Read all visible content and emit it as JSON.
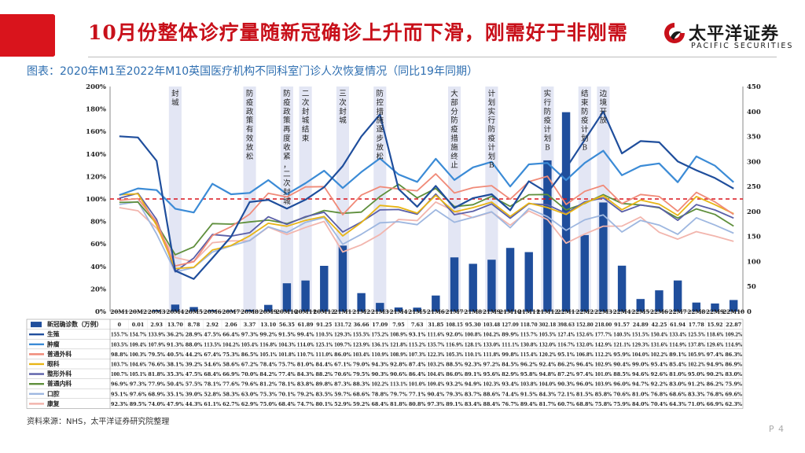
{
  "header": {
    "title": "10月份整体诊疗量随新冠确诊上升而下滑，刚需好于非刚需",
    "logo_cn": "太平洋证券",
    "logo_en": "PACIFIC SECURITIES"
  },
  "subtitle": "图表：2020年M1至2022年M10英国医疗机构不同科室门诊人次恢复情况（同比19年同期）",
  "source": "资料来源：NHS，太平洋证券研究院整理",
  "page_number": "P 4",
  "colors": {
    "brand_red": "#d9141c",
    "subtitle_blue": "#2f6fb1"
  },
  "chart_data": {
    "type": "line",
    "categories": [
      "20M1",
      "20M2",
      "20M3",
      "20M4",
      "20M5",
      "20M6",
      "20M7",
      "20M8",
      "20M9",
      "20M10",
      "20M11",
      "20M12",
      "21M1",
      "21M2",
      "21M3",
      "21M4",
      "21M5",
      "21M6",
      "21M7",
      "21M8",
      "21M9",
      "21M10",
      "21M11",
      "21M12",
      "22M1",
      "22M2",
      "22M3",
      "22M4",
      "22M5",
      "22M6",
      "22M7",
      "22M8",
      "22M9",
      "22M10"
    ],
    "y_left": {
      "min": 0,
      "max": 200,
      "step": 20,
      "suffix": "%"
    },
    "y_right": {
      "min": 0,
      "max": 450,
      "step": 50
    },
    "reference_line": 100,
    "bars": {
      "name": "新冠确诊数（万例）",
      "labels": [
        "0",
        "0.01",
        "2.93",
        "13.70",
        "8.78",
        "2.92",
        "2.06",
        "3.37",
        "13.10",
        "56.35",
        "61.89",
        "91.25",
        "131.72",
        "36.66",
        "17.09",
        "7.95",
        "7.63",
        "31.85",
        "108.15",
        "95.30",
        "103.48",
        "127.09",
        "118.70",
        "302.18",
        "398.63",
        "152.80",
        "218.00",
        "91.57",
        "24.89",
        "42.25",
        "61.94",
        "17.78",
        "15.92",
        "22.87"
      ],
      "color": "#1f4e9c"
    },
    "series": [
      {
        "name": "生殖",
        "color": "#1f4e9c",
        "labels": [
          "155.7%",
          "154.7%",
          "133.9%",
          "36.2%",
          "28.9%",
          "47.5%",
          "66.4%",
          "97.3%",
          "99.2%",
          "91.5%",
          "99.4%",
          "110.5%",
          "129.3%",
          "155.5%",
          "175.2%",
          "108.9%",
          "93.1%",
          "111.6%",
          "92.0%",
          "100.8%",
          "104.2%",
          "89.9%",
          "115.7%",
          "105.5%",
          "127.4%",
          "152.6%",
          "177.7%",
          "140.5%",
          "151.5%",
          "150.4%",
          "133.4%",
          "125.5%",
          "118.6%",
          "109.2%"
        ]
      },
      {
        "name": "肿瘤",
        "color": "#3b8bd6",
        "labels": [
          "103.5%",
          "109.4%",
          "107.9%",
          "91.3%",
          "88.0%",
          "113.5%",
          "104.2%",
          "105.4%",
          "116.8%",
          "104.3%",
          "114.0%",
          "125.1%",
          "109.7%",
          "123.9%",
          "136.1%",
          "121.8%",
          "115.2%",
          "135.7%",
          "116.9%",
          "128.1%",
          "133.0%",
          "111.1%",
          "130.8%",
          "132.0%",
          "116.7%",
          "132.0%",
          "142.9%",
          "121.1%",
          "129.3%",
          "131.6%",
          "114.9%",
          "137.8%",
          "129.6%",
          "114.9%"
        ]
      },
      {
        "name": "普通外科",
        "color": "#f08a78",
        "labels": [
          "98.8%",
          "100.3%",
          "79.5%",
          "40.5%",
          "44.2%",
          "67.4%",
          "75.3%",
          "86.5%",
          "105.1%",
          "101.8%",
          "110.7%",
          "111.0%",
          "86.0%",
          "103.4%",
          "110.9%",
          "108.9%",
          "107.3%",
          "122.3%",
          "105.3%",
          "110.1%",
          "111.8%",
          "99.8%",
          "115.4%",
          "120.2%",
          "95.1%",
          "106.8%",
          "112.2%",
          "95.9%",
          "104.0%",
          "102.2%",
          "89.1%",
          "105.9%",
          "97.4%",
          "86.3%"
        ]
      },
      {
        "name": "眼科",
        "color": "#e8b516",
        "labels": [
          "103.7%",
          "104.6%",
          "76.6%",
          "38.1%",
          "39.2%",
          "54.6%",
          "58.6%",
          "67.2%",
          "78.4%",
          "75.7%",
          "81.0%",
          "84.4%",
          "67.1%",
          "79.0%",
          "94.3%",
          "92.8%",
          "87.4%",
          "103.2%",
          "88.5%",
          "92.3%",
          "97.2%",
          "84.5%",
          "96.2%",
          "92.4%",
          "86.2%",
          "96.4%",
          "102.9%",
          "90.4%",
          "99.0%",
          "95.4%",
          "85.4%",
          "102.2%",
          "94.9%",
          "86.9%"
        ]
      },
      {
        "name": "整形外科",
        "color": "#5a5fa8",
        "labels": [
          "100.7%",
          "105.1%",
          "81.8%",
          "35.3%",
          "47.5%",
          "68.4%",
          "66.9%",
          "70.0%",
          "84.2%",
          "77.4%",
          "84.3%",
          "88.2%",
          "70.6%",
          "79.5%",
          "90.3%",
          "90.6%",
          "86.4%",
          "104.4%",
          "86.0%",
          "89.1%",
          "95.6%",
          "82.9%",
          "95.8%",
          "94.8%",
          "87.2%",
          "97.4%",
          "101.0%",
          "88.5%",
          "94.6%",
          "92.6%",
          "81.0%",
          "95.0%",
          "90.2%",
          "83.0%"
        ]
      },
      {
        "name": "普通内科",
        "color": "#5f8f3c",
        "labels": [
          "96.9%",
          "97.3%",
          "77.9%",
          "50.4%",
          "57.5%",
          "78.1%",
          "77.6%",
          "79.6%",
          "81.2%",
          "78.1%",
          "83.8%",
          "89.8%",
          "87.3%",
          "88.3%",
          "102.2%",
          "113.1%",
          "101.0%",
          "109.4%",
          "93.2%",
          "94.9%",
          "102.3%",
          "93.4%",
          "103.8%",
          "104.0%",
          "90.3%",
          "96.0%",
          "103.9%",
          "96.0%",
          "94.7%",
          "92.2%",
          "83.0%",
          "91.2%",
          "86.2%",
          "75.9%"
        ]
      },
      {
        "name": "口腔",
        "color": "#9eb7e0",
        "labels": [
          "95.1%",
          "97.6%",
          "68.9%",
          "35.1%",
          "39.0%",
          "52.8%",
          "58.3%",
          "63.0%",
          "75.3%",
          "70.1%",
          "79.2%",
          "83.5%",
          "59.7%",
          "68.6%",
          "78.8%",
          "79.7%",
          "77.1%",
          "90.4%",
          "79.3%",
          "83.7%",
          "88.6%",
          "74.4%",
          "91.5%",
          "84.3%",
          "72.1%",
          "81.5%",
          "85.8%",
          "70.6%",
          "81.0%",
          "76.8%",
          "68.6%",
          "83.3%",
          "76.8%",
          "69.6%"
        ]
      },
      {
        "name": "康复",
        "color": "#f2b5ad",
        "labels": [
          "92.3%",
          "89.5%",
          "74.0%",
          "47.9%",
          "44.3%",
          "61.1%",
          "62.7%",
          "62.9%",
          "75.0%",
          "68.4%",
          "74.7%",
          "80.1%",
          "52.9%",
          "59.2%",
          "68.4%",
          "81.8%",
          "80.8%",
          "97.3%",
          "89.1%",
          "83.4%",
          "88.4%",
          "76.7%",
          "89.4%",
          "81.7%",
          "60.7%",
          "68.8%",
          "75.8%",
          "75.9%",
          "84.0%",
          "70.4%",
          "64.3%",
          "71.0%",
          "66.9%",
          "62.3%"
        ]
      }
    ],
    "annotations": [
      {
        "index": 3,
        "text": "封城"
      },
      {
        "index": 7,
        "text": "防疫政策有效放松"
      },
      {
        "index": 9,
        "text": "防疫政策再度收紧，二次封城"
      },
      {
        "index": 10,
        "text": "二次封城结束"
      },
      {
        "index": 12,
        "text": "三次封城"
      },
      {
        "index": 14,
        "text": "防控措施逐步放松"
      },
      {
        "index": 18,
        "text": "大部分防疫措施终止"
      },
      {
        "index": 20,
        "text": "计划实行防疫计划B"
      },
      {
        "index": 23,
        "text": "实行防疫计划B"
      },
      {
        "index": 25,
        "text": "结束防疫计划B"
      },
      {
        "index": 26,
        "text": "边境开放"
      }
    ],
    "highlight_indices": [
      3,
      7,
      9,
      10,
      12,
      14,
      18,
      20,
      23,
      25,
      26
    ]
  }
}
